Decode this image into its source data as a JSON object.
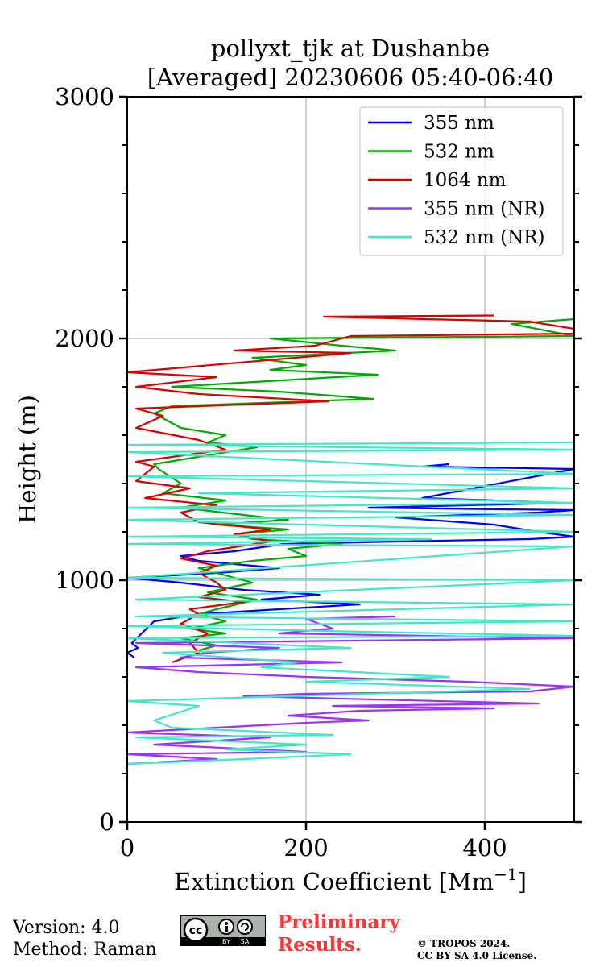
{
  "chart_data": {
    "type": "line",
    "title": "pollyxt_tjk at Dushanbe",
    "subtitle": "[Averaged] 20230606 05:40-06:40",
    "xlabel": "Extinction Coefficient [Mm",
    "xlabel_superscript": "−1",
    "xlabel_close": "]",
    "ylabel": "Height (m)",
    "xlim": [
      0,
      500
    ],
    "ylim": [
      0,
      3000
    ],
    "x_ticks": [
      0,
      200,
      400
    ],
    "y_ticks": [
      0,
      1000,
      2000,
      3000
    ],
    "x_tick_labels": [
      "0",
      "200",
      "400"
    ],
    "y_tick_labels": [
      "0",
      "1000",
      "2000",
      "3000"
    ],
    "grid": true,
    "legend_position": "top-right",
    "series": [
      {
        "name": "355 nm",
        "color": "#0000ff",
        "points": [
          [
            8,
            680
          ],
          [
            0,
            700
          ],
          [
            12,
            720
          ],
          [
            5,
            740
          ],
          [
            30,
            830
          ],
          [
            80,
            860
          ],
          [
            170,
            880
          ],
          [
            260,
            900
          ],
          [
            150,
            920
          ],
          [
            215,
            940
          ],
          [
            130,
            960
          ],
          [
            60,
            990
          ],
          [
            0,
            1010
          ],
          [
            50,
            1020
          ],
          [
            100,
            1030
          ],
          [
            170,
            1050
          ],
          [
            80,
            1080
          ],
          [
            60,
            1100
          ],
          [
            120,
            1120
          ],
          [
            175,
            1150
          ],
          [
            300,
            1160
          ],
          [
            450,
            1170
          ],
          [
            500,
            1180
          ],
          [
            460,
            1200
          ],
          [
            410,
            1230
          ],
          [
            300,
            1260
          ],
          [
            460,
            1280
          ],
          [
            500,
            1290
          ],
          [
            270,
            1300
          ],
          [
            490,
            1320
          ],
          [
            330,
            1340
          ],
          [
            500,
            1460
          ],
          [
            330,
            1470
          ],
          [
            360,
            1480
          ]
        ]
      },
      {
        "name": "532 nm",
        "color": "#00aa00",
        "points": [
          [
            80,
            710
          ],
          [
            100,
            730
          ],
          [
            60,
            760
          ],
          [
            110,
            780
          ],
          [
            70,
            800
          ],
          [
            110,
            830
          ],
          [
            80,
            860
          ],
          [
            100,
            880
          ],
          [
            145,
            920
          ],
          [
            90,
            950
          ],
          [
            140,
            990
          ],
          [
            120,
            1010
          ],
          [
            80,
            1050
          ],
          [
            140,
            1080
          ],
          [
            200,
            1100
          ],
          [
            180,
            1130
          ],
          [
            240,
            1150
          ],
          [
            140,
            1170
          ],
          [
            120,
            1190
          ],
          [
            180,
            1210
          ],
          [
            100,
            1230
          ],
          [
            180,
            1250
          ],
          [
            130,
            1270
          ],
          [
            60,
            1300
          ],
          [
            110,
            1330
          ],
          [
            40,
            1360
          ],
          [
            60,
            1400
          ],
          [
            35,
            1460
          ],
          [
            30,
            1480
          ],
          [
            145,
            1550
          ],
          [
            90,
            1570
          ],
          [
            110,
            1600
          ],
          [
            60,
            1630
          ],
          [
            30,
            1690
          ],
          [
            50,
            1720
          ],
          [
            275,
            1750
          ],
          [
            170,
            1780
          ],
          [
            50,
            1800
          ],
          [
            280,
            1850
          ],
          [
            160,
            1870
          ],
          [
            200,
            1890
          ],
          [
            140,
            1920
          ],
          [
            300,
            1950
          ],
          [
            240,
            1970
          ],
          [
            160,
            2000
          ],
          [
            500,
            2010
          ],
          [
            430,
            2060
          ],
          [
            500,
            2080
          ],
          [
            500,
            2100
          ]
        ]
      },
      {
        "name": "1064 nm",
        "color": "#dd0000",
        "points": [
          [
            50,
            660
          ],
          [
            80,
            700
          ],
          [
            70,
            740
          ],
          [
            90,
            780
          ],
          [
            60,
            820
          ],
          [
            80,
            860
          ],
          [
            70,
            880
          ],
          [
            110,
            900
          ],
          [
            130,
            910
          ],
          [
            80,
            930
          ],
          [
            110,
            960
          ],
          [
            100,
            990
          ],
          [
            80,
            1030
          ],
          [
            100,
            1060
          ],
          [
            60,
            1090
          ],
          [
            90,
            1120
          ],
          [
            160,
            1160
          ],
          [
            120,
            1190
          ],
          [
            160,
            1210
          ],
          [
            80,
            1240
          ],
          [
            60,
            1280
          ],
          [
            100,
            1310
          ],
          [
            20,
            1340
          ],
          [
            70,
            1380
          ],
          [
            10,
            1410
          ],
          [
            30,
            1470
          ],
          [
            10,
            1490
          ],
          [
            110,
            1540
          ],
          [
            80,
            1580
          ],
          [
            10,
            1630
          ],
          [
            40,
            1680
          ],
          [
            10,
            1710
          ],
          [
            225,
            1740
          ],
          [
            80,
            1770
          ],
          [
            10,
            1800
          ],
          [
            100,
            1840
          ],
          [
            0,
            1860
          ],
          [
            250,
            1940
          ],
          [
            120,
            1950
          ],
          [
            210,
            1970
          ],
          [
            250,
            2010
          ],
          [
            500,
            2020
          ],
          [
            500,
            2040
          ],
          [
            450,
            2070
          ],
          [
            220,
            2090
          ],
          [
            410,
            2095
          ]
        ]
      },
      {
        "name": "355 nm (NR)",
        "color": "#9b30ff",
        "points": [
          [
            0,
            240
          ],
          [
            100,
            260
          ],
          [
            0,
            280
          ],
          [
            200,
            290
          ],
          [
            30,
            320
          ],
          [
            160,
            350
          ],
          [
            0,
            370
          ],
          [
            100,
            390
          ],
          [
            200,
            410
          ],
          [
            270,
            420
          ],
          [
            180,
            440
          ],
          [
            260,
            460
          ],
          [
            410,
            470
          ],
          [
            230,
            480
          ],
          [
            460,
            490
          ],
          [
            130,
            520
          ],
          [
            200,
            530
          ],
          [
            450,
            540
          ],
          [
            500,
            560
          ],
          [
            380,
            580
          ],
          [
            200,
            600
          ],
          [
            80,
            620
          ],
          [
            10,
            640
          ],
          [
            240,
            660
          ],
          [
            60,
            680
          ],
          [
            90,
            700
          ],
          [
            170,
            720
          ],
          [
            10,
            740
          ],
          [
            500,
            760
          ],
          [
            170,
            780
          ],
          [
            230,
            800
          ],
          [
            200,
            840
          ],
          [
            300,
            850
          ]
        ]
      },
      {
        "name": "532 nm (NR)",
        "color": "#40e8c8",
        "points": [
          [
            0,
            240
          ],
          [
            130,
            260
          ],
          [
            250,
            280
          ],
          [
            110,
            300
          ],
          [
            200,
            320
          ],
          [
            10,
            350
          ],
          [
            230,
            360
          ],
          [
            50,
            390
          ],
          [
            30,
            420
          ],
          [
            80,
            480
          ],
          [
            0,
            500
          ],
          [
            180,
            520
          ],
          [
            450,
            550
          ],
          [
            200,
            580
          ],
          [
            360,
            600
          ],
          [
            150,
            640
          ],
          [
            190,
            660
          ],
          [
            40,
            700
          ],
          [
            250,
            720
          ],
          [
            0,
            760
          ],
          [
            500,
            770
          ],
          [
            220,
            790
          ],
          [
            0,
            810
          ],
          [
            500,
            830
          ],
          [
            10,
            850
          ],
          [
            500,
            900
          ],
          [
            10,
            920
          ],
          [
            500,
            1000
          ],
          [
            0,
            1010
          ],
          [
            500,
            1140
          ],
          [
            0,
            1150
          ],
          [
            340,
            1170
          ],
          [
            0,
            1180
          ],
          [
            500,
            1200
          ],
          [
            0,
            1250
          ],
          [
            500,
            1270
          ],
          [
            0,
            1300
          ],
          [
            500,
            1320
          ],
          [
            80,
            1360
          ],
          [
            500,
            1380
          ],
          [
            0,
            1430
          ],
          [
            500,
            1440
          ],
          [
            0,
            1530
          ],
          [
            500,
            1540
          ],
          [
            0,
            1560
          ],
          [
            500,
            1570
          ]
        ]
      }
    ]
  },
  "footer": {
    "version": "Version: 4.0",
    "method": "Method: Raman",
    "license_badge": "cc-by-sa-badge-icon",
    "badge_by": "BY",
    "badge_sa": "SA",
    "preliminary_line1": "Preliminary",
    "preliminary_line2": "Results.",
    "copyright_line1": "© TROPOS 2024.",
    "copyright_line2": "CC BY SA 4.0 License."
  }
}
